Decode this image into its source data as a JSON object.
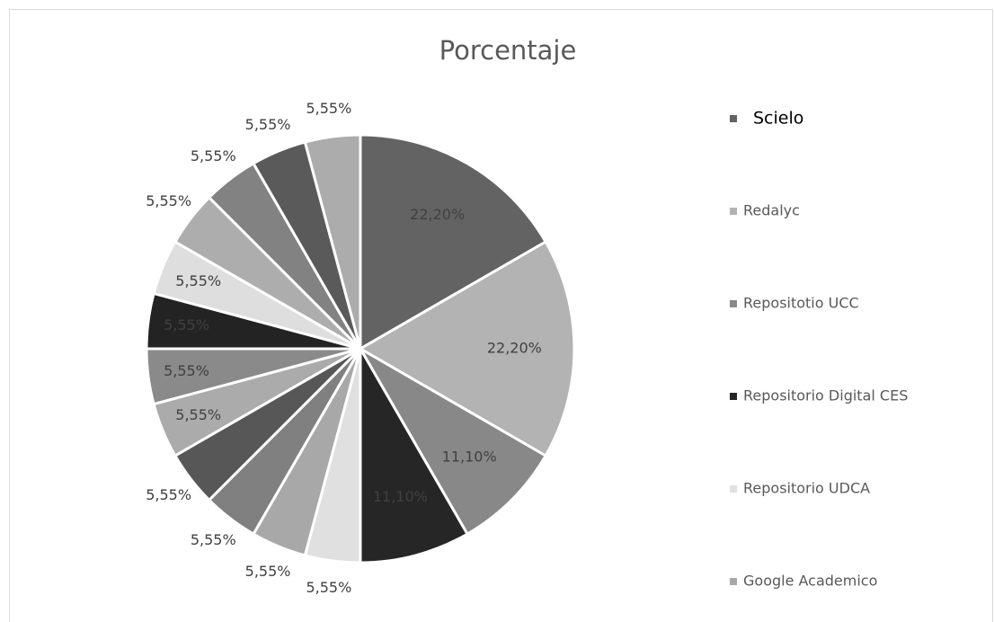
{
  "chart_data": {
    "type": "pie",
    "title": "Porcentaje",
    "categories": [
      "Scielo",
      "Redalyc",
      "Repositotio UCC",
      "Repositorio Digital CES",
      "Repositorio UDCA",
      "Google Academico",
      null,
      null,
      null,
      null,
      null,
      null,
      null,
      null,
      null,
      null
    ],
    "values": [
      22.2,
      22.2,
      11.1,
      11.1,
      5.55,
      5.55,
      5.55,
      5.55,
      5.55,
      5.55,
      5.55,
      5.55,
      5.55,
      5.55,
      5.55,
      5.55
    ],
    "value_labels": [
      "22,20%",
      "22,20%",
      "11,10%",
      "11,10%",
      "5,55%",
      "5,55%",
      "5,55%",
      "5,55%",
      "5,55%",
      "5,55%",
      "5,55%",
      "5,55%",
      "5,55%",
      "5,55%",
      "5,55%",
      "5,55%"
    ],
    "colors": [
      "#636363",
      "#b3b3b3",
      "#888888",
      "#262626",
      "#e0e0e0",
      "#a8a8a8",
      "#808080",
      "#575757",
      "#ababab",
      "#8a8a8a",
      "#232323",
      "#dedede",
      "#adadad",
      "#828282",
      "#5a5a5a",
      "#acacac"
    ],
    "legend": "right"
  }
}
